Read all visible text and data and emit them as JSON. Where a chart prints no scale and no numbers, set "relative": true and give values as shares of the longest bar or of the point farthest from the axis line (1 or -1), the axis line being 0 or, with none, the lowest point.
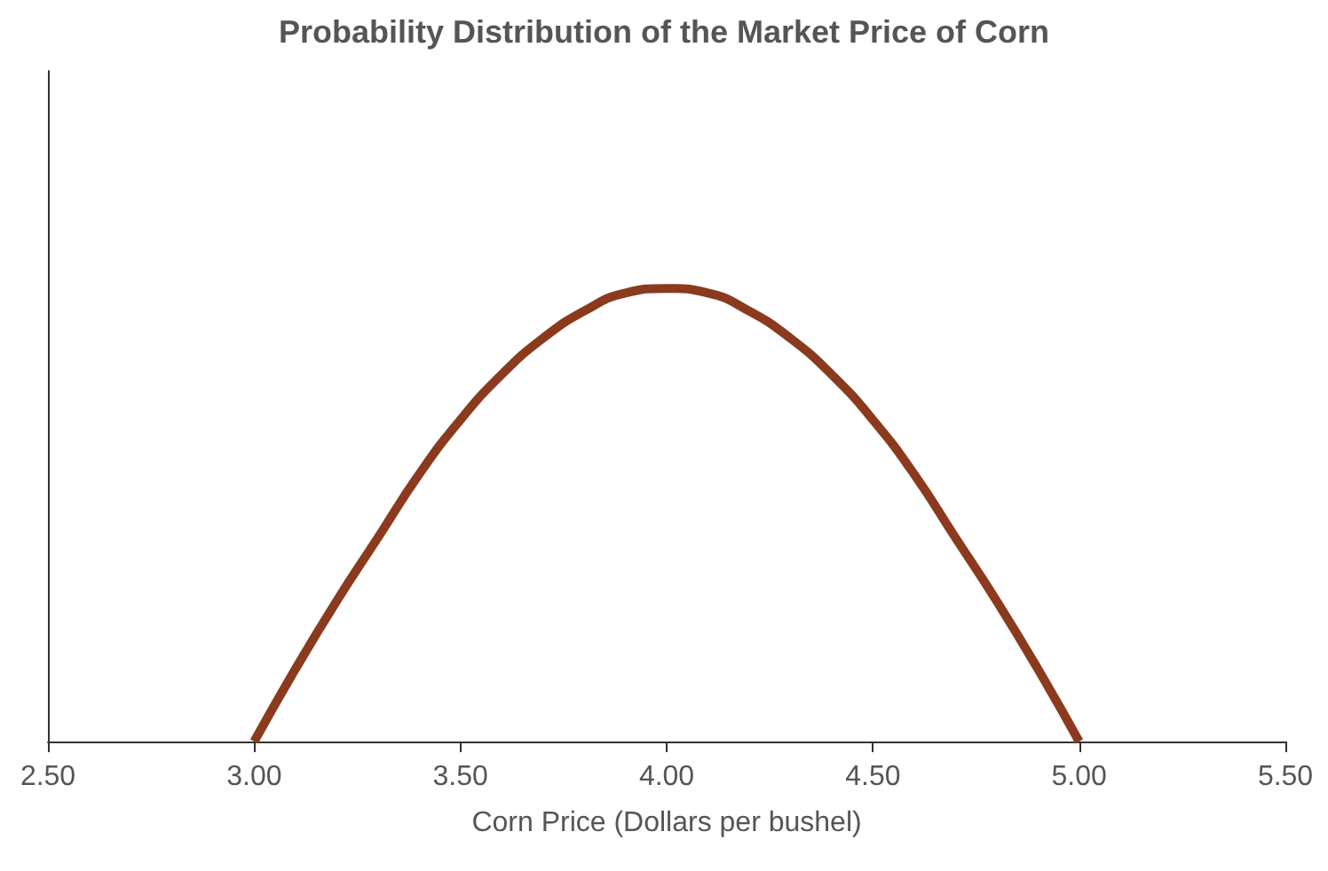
{
  "chart_data": {
    "type": "line",
    "title": "Probability Distribution of the Market Price of Corn",
    "xlabel": "Corn Price (Dollars per bushel)",
    "relative": true,
    "tick_labels": "x",
    "grid": false,
    "marker": "none",
    "line_style": "solid",
    "xlim": [
      2.5,
      5.5
    ],
    "xticks": [
      {
        "value": 2.5,
        "label": "2.50"
      },
      {
        "value": 3,
        "label": "3.00"
      },
      {
        "value": 3.5,
        "label": "3.50"
      },
      {
        "value": 4,
        "label": "4.00"
      },
      {
        "value": 4.5,
        "label": "4.50"
      },
      {
        "value": 5,
        "label": "5.00"
      },
      {
        "value": 5.5,
        "label": "5.50"
      }
    ],
    "x": [
      3,
      3.1,
      3.2,
      3.3,
      3.4,
      3.5,
      3.6,
      3.7,
      3.8,
      3.9,
      4,
      4.1,
      4.2,
      4.3,
      4.4,
      4.5,
      4.6,
      4.7,
      4.8,
      4.9,
      5
    ],
    "series": [
      {
        "color": "#8b3a1e",
        "values": [
          0,
          0.16,
          0.31,
          0.45,
          0.59,
          0.71,
          0.81,
          0.89,
          0.95,
          0.99,
          1,
          0.99,
          0.95,
          0.89,
          0.81,
          0.71,
          0.59,
          0.45,
          0.31,
          0.16,
          0
        ]
      }
    ]
  }
}
